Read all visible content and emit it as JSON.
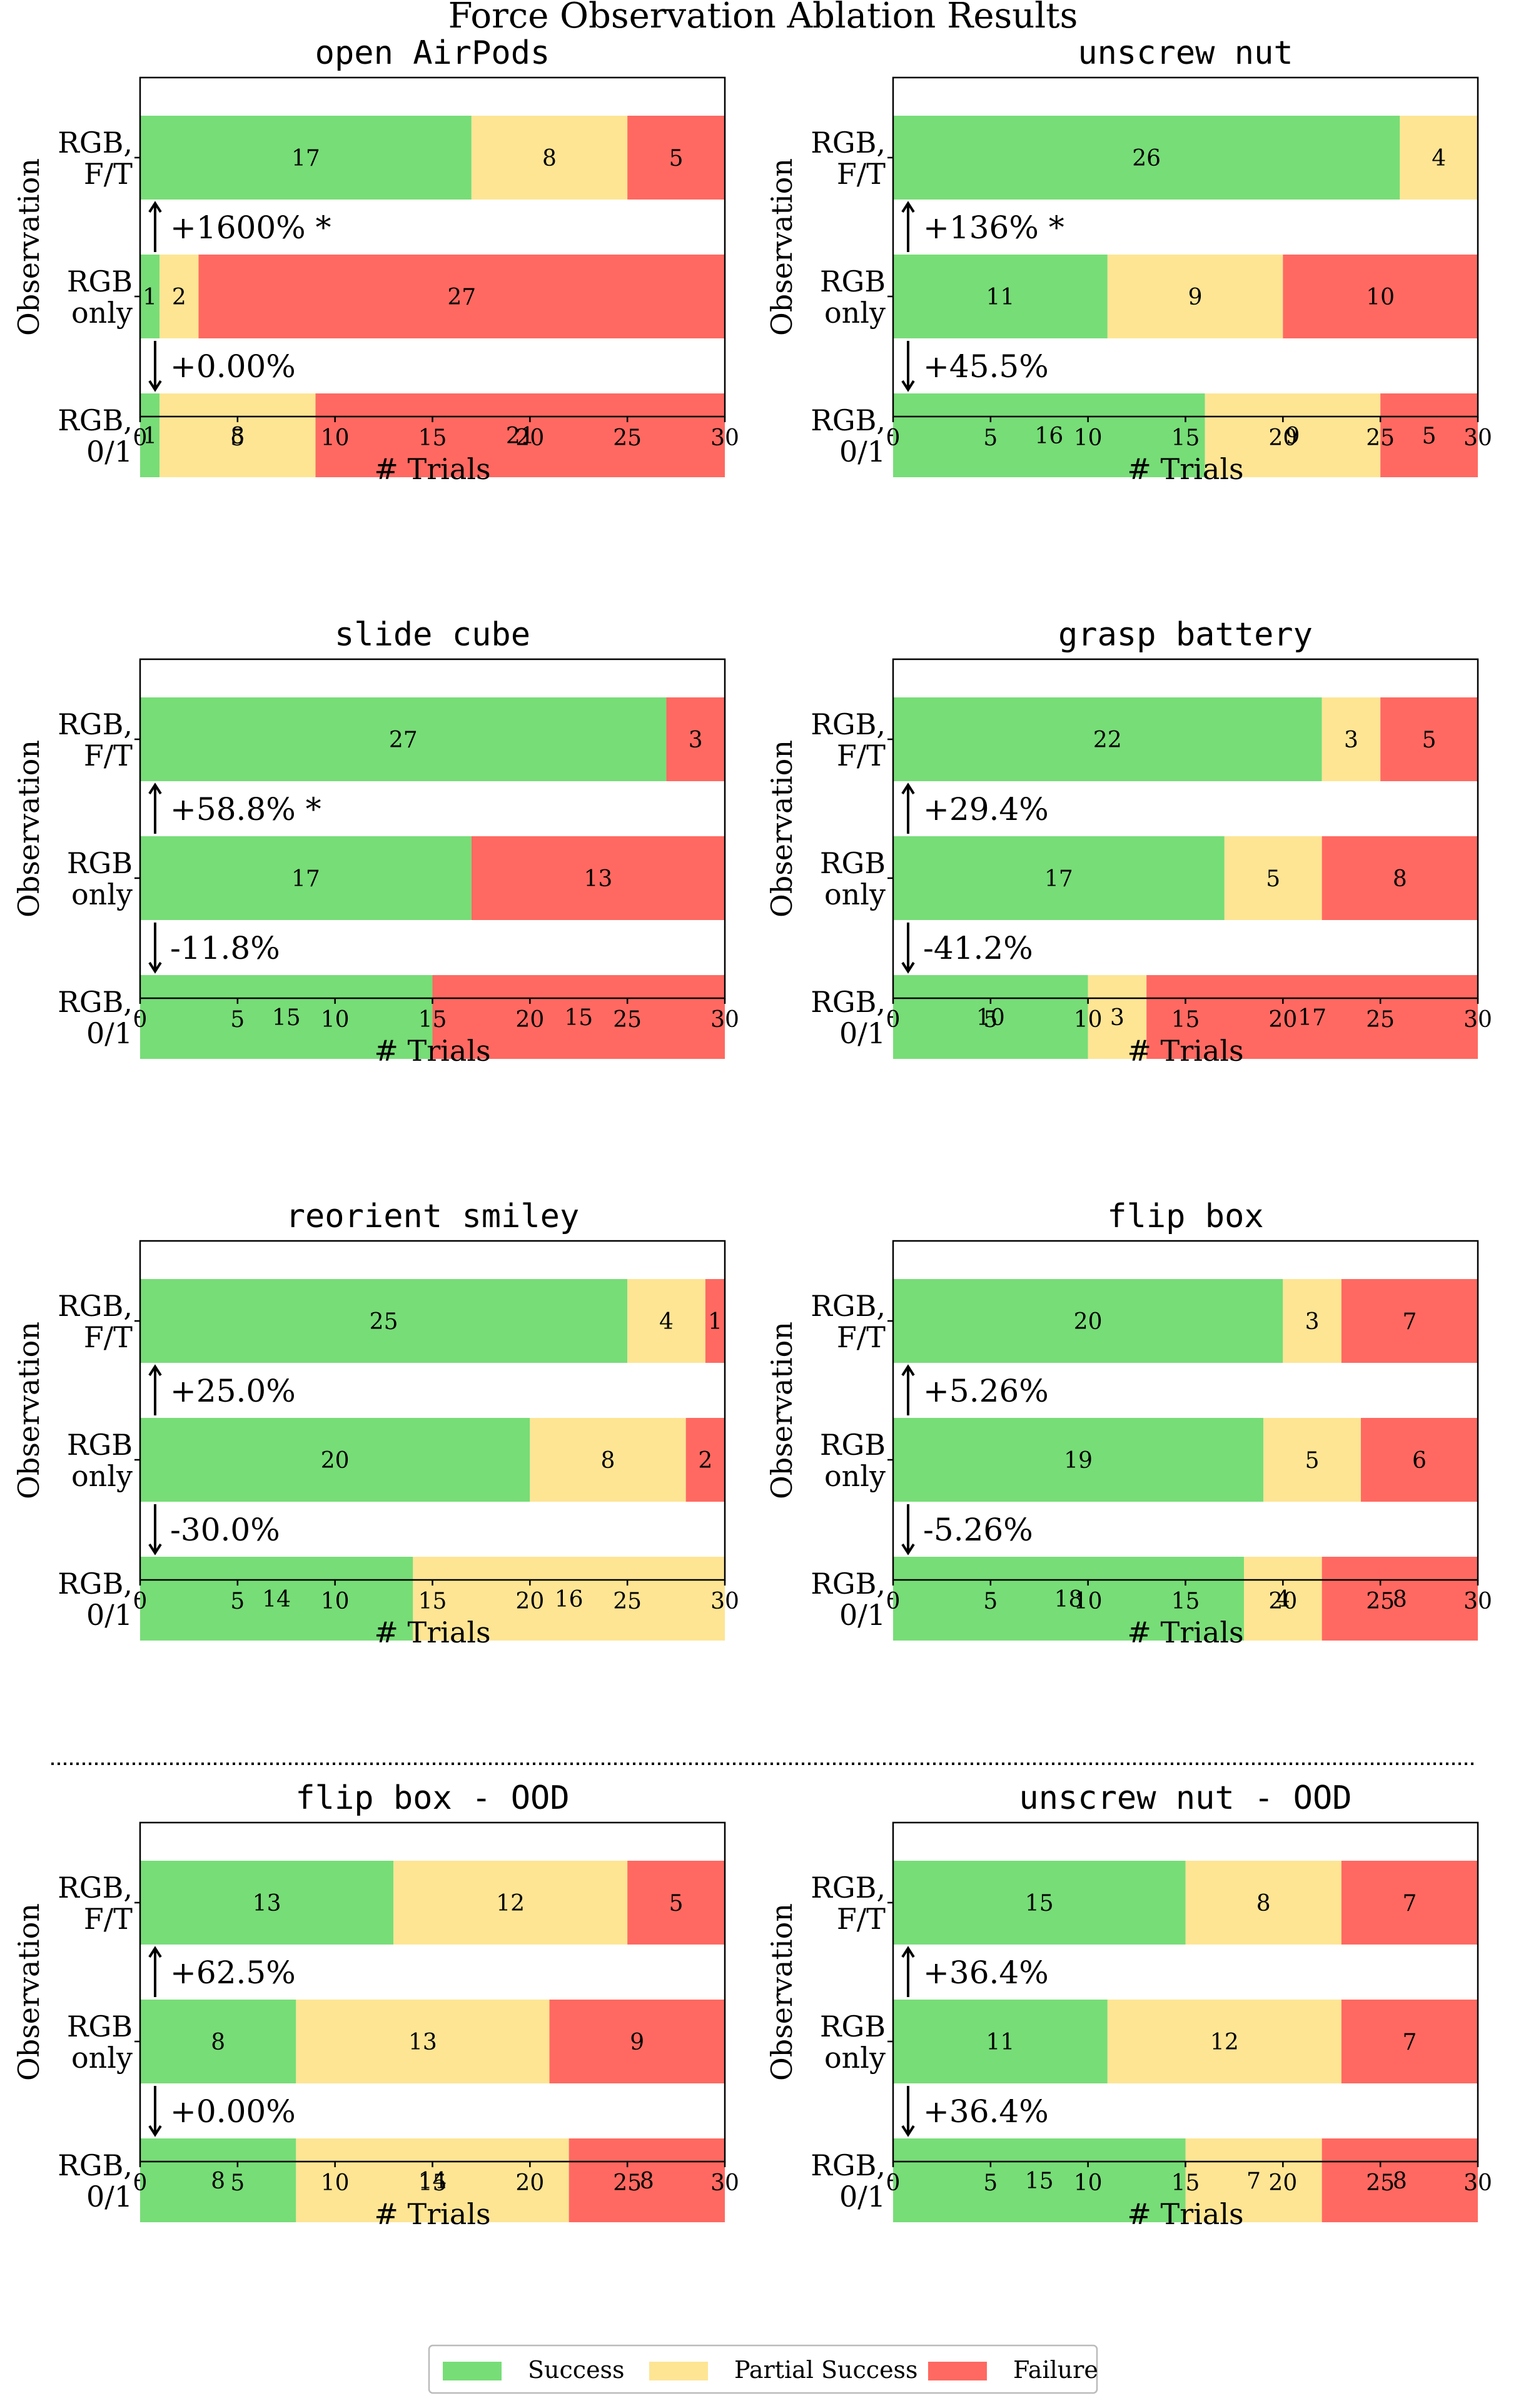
{
  "title": "Force Observation Ablation Results",
  "colors": {
    "success": "#77DD77",
    "partial": "#FDE594",
    "failure": "#FF6961"
  },
  "legend": [
    "Success",
    "Partial Success",
    "Failure"
  ],
  "chart_data": [
    {
      "type": "bar",
      "title": "open AirPods",
      "xlabel": "# Trials",
      "ylabel": "Observation",
      "categories": [
        "RGB,\nF/T",
        "RGB\nonly",
        "RGB,\n0/1"
      ],
      "series": [
        {
          "name": "Success",
          "values": [
            17,
            1,
            1
          ]
        },
        {
          "name": "Partial Success",
          "values": [
            8,
            2,
            8
          ]
        },
        {
          "name": "Failure",
          "values": [
            5,
            27,
            21
          ]
        }
      ],
      "deltas": [
        {
          "text": "+1600% *",
          "direction": "up"
        },
        {
          "text": "+0.00%",
          "direction": "down"
        }
      ],
      "xlim": [
        0,
        30
      ],
      "xticks": [
        0,
        5,
        10,
        15,
        20,
        25,
        30
      ]
    },
    {
      "type": "bar",
      "title": "unscrew nut",
      "xlabel": "# Trials",
      "ylabel": "Observation",
      "categories": [
        "RGB,\nF/T",
        "RGB\nonly",
        "RGB,\n0/1"
      ],
      "series": [
        {
          "name": "Success",
          "values": [
            26,
            11,
            16
          ]
        },
        {
          "name": "Partial Success",
          "values": [
            4,
            9,
            9
          ]
        },
        {
          "name": "Failure",
          "values": [
            0,
            10,
            5
          ]
        }
      ],
      "deltas": [
        {
          "text": "+136% *",
          "direction": "up"
        },
        {
          "text": "+45.5%",
          "direction": "down"
        }
      ],
      "xlim": [
        0,
        30
      ],
      "xticks": [
        0,
        5,
        10,
        15,
        20,
        25,
        30
      ]
    },
    {
      "type": "bar",
      "title": "slide cube",
      "xlabel": "# Trials",
      "ylabel": "Observation",
      "categories": [
        "RGB,\nF/T",
        "RGB\nonly",
        "RGB,\n0/1"
      ],
      "series": [
        {
          "name": "Success",
          "values": [
            27,
            17,
            15
          ]
        },
        {
          "name": "Partial Success",
          "values": [
            0,
            0,
            0
          ]
        },
        {
          "name": "Failure",
          "values": [
            3,
            13,
            15
          ]
        }
      ],
      "deltas": [
        {
          "text": "+58.8% *",
          "direction": "up"
        },
        {
          "text": "-11.8%",
          "direction": "down"
        }
      ],
      "xlim": [
        0,
        30
      ],
      "xticks": [
        0,
        5,
        10,
        15,
        20,
        25,
        30
      ]
    },
    {
      "type": "bar",
      "title": "grasp battery",
      "xlabel": "# Trials",
      "ylabel": "Observation",
      "categories": [
        "RGB,\nF/T",
        "RGB\nonly",
        "RGB,\n0/1"
      ],
      "series": [
        {
          "name": "Success",
          "values": [
            22,
            17,
            10
          ]
        },
        {
          "name": "Partial Success",
          "values": [
            3,
            5,
            3
          ]
        },
        {
          "name": "Failure",
          "values": [
            5,
            8,
            17
          ]
        }
      ],
      "deltas": [
        {
          "text": "+29.4%",
          "direction": "up"
        },
        {
          "text": "-41.2%",
          "direction": "down"
        }
      ],
      "xlim": [
        0,
        30
      ],
      "xticks": [
        0,
        5,
        10,
        15,
        20,
        25,
        30
      ]
    },
    {
      "type": "bar",
      "title": "reorient smiley",
      "xlabel": "# Trials",
      "ylabel": "Observation",
      "categories": [
        "RGB,\nF/T",
        "RGB\nonly",
        "RGB,\n0/1"
      ],
      "series": [
        {
          "name": "Success",
          "values": [
            25,
            20,
            14
          ]
        },
        {
          "name": "Partial Success",
          "values": [
            4,
            8,
            16
          ]
        },
        {
          "name": "Failure",
          "values": [
            1,
            2,
            0
          ]
        }
      ],
      "deltas": [
        {
          "text": "+25.0%",
          "direction": "up"
        },
        {
          "text": "-30.0%",
          "direction": "down"
        }
      ],
      "xlim": [
        0,
        30
      ],
      "xticks": [
        0,
        5,
        10,
        15,
        20,
        25,
        30
      ]
    },
    {
      "type": "bar",
      "title": "flip box",
      "xlabel": "# Trials",
      "ylabel": "Observation",
      "categories": [
        "RGB,\nF/T",
        "RGB\nonly",
        "RGB,\n0/1"
      ],
      "series": [
        {
          "name": "Success",
          "values": [
            20,
            19,
            18
          ]
        },
        {
          "name": "Partial Success",
          "values": [
            3,
            5,
            4
          ]
        },
        {
          "name": "Failure",
          "values": [
            7,
            6,
            8
          ]
        }
      ],
      "deltas": [
        {
          "text": "+5.26%",
          "direction": "up"
        },
        {
          "text": "-5.26%",
          "direction": "down"
        }
      ],
      "xlim": [
        0,
        30
      ],
      "xticks": [
        0,
        5,
        10,
        15,
        20,
        25,
        30
      ]
    },
    {
      "type": "bar",
      "title": "flip box - OOD",
      "xlabel": "# Trials",
      "ylabel": "Observation",
      "categories": [
        "RGB,\nF/T",
        "RGB\nonly",
        "RGB,\n0/1"
      ],
      "series": [
        {
          "name": "Success",
          "values": [
            13,
            8,
            8
          ]
        },
        {
          "name": "Partial Success",
          "values": [
            12,
            13,
            14
          ]
        },
        {
          "name": "Failure",
          "values": [
            5,
            9,
            8
          ]
        }
      ],
      "deltas": [
        {
          "text": "+62.5%",
          "direction": "up"
        },
        {
          "text": "+0.00%",
          "direction": "down"
        }
      ],
      "xlim": [
        0,
        30
      ],
      "xticks": [
        0,
        5,
        10,
        15,
        20,
        25,
        30
      ]
    },
    {
      "type": "bar",
      "title": "unscrew nut - OOD",
      "xlabel": "# Trials",
      "ylabel": "Observation",
      "categories": [
        "RGB,\nF/T",
        "RGB\nonly",
        "RGB,\n0/1"
      ],
      "series": [
        {
          "name": "Success",
          "values": [
            15,
            11,
            15
          ]
        },
        {
          "name": "Partial Success",
          "values": [
            8,
            12,
            7
          ]
        },
        {
          "name": "Failure",
          "values": [
            7,
            7,
            8
          ]
        }
      ],
      "deltas": [
        {
          "text": "+36.4%",
          "direction": "up"
        },
        {
          "text": "+36.4%",
          "direction": "down"
        }
      ],
      "xlim": [
        0,
        30
      ],
      "xticks": [
        0,
        5,
        10,
        15,
        20,
        25,
        30
      ]
    }
  ]
}
